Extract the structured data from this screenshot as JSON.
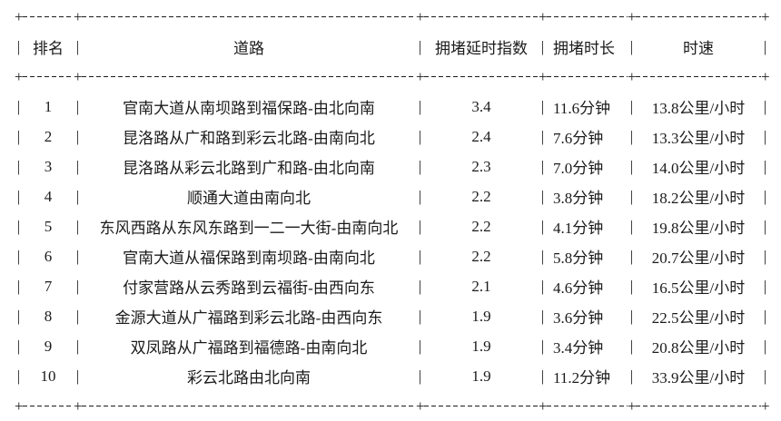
{
  "glyphs": {
    "vertical": "|",
    "corner": "+"
  },
  "chart_data": {
    "type": "table",
    "columns": [
      "排名",
      "道路",
      "拥堵延时指数",
      "拥堵时长",
      "时速"
    ],
    "rows": [
      [
        "1",
        "官南大道从南坝路到福保路-由北向南",
        "3.4",
        "11.6分钟",
        "13.8公里/小时"
      ],
      [
        "2",
        "昆洛路从广和路到彩云北路-由南向北",
        "2.4",
        "7.6分钟",
        "13.3公里/小时"
      ],
      [
        "3",
        "昆洛路从彩云北路到广和路-由北向南",
        "2.3",
        "7.0分钟",
        "14.0公里/小时"
      ],
      [
        "4",
        "顺通大道由南向北",
        "2.2",
        "3.8分钟",
        "18.2公里/小时"
      ],
      [
        "5",
        "东风西路从东风东路到一二一大街-由南向北",
        "2.2",
        "4.1分钟",
        "19.8公里/小时"
      ],
      [
        "6",
        "官南大道从福保路到南坝路-由南向北",
        "2.2",
        "5.8分钟",
        "20.7公里/小时"
      ],
      [
        "7",
        "付家营路从云秀路到云福街-由西向东",
        "2.1",
        "4.6分钟",
        "16.5公里/小时"
      ],
      [
        "8",
        "金源大道从广福路到彩云北路-由西向东",
        "1.9",
        "3.6分钟",
        "22.5公里/小时"
      ],
      [
        "9",
        "双凤路从广福路到福德路-由南向北",
        "1.9",
        "3.4分钟",
        "20.8公里/小时"
      ],
      [
        "10",
        "彩云北路由北向南",
        "1.9",
        "11.2分钟",
        "33.9公里/小时"
      ]
    ]
  }
}
